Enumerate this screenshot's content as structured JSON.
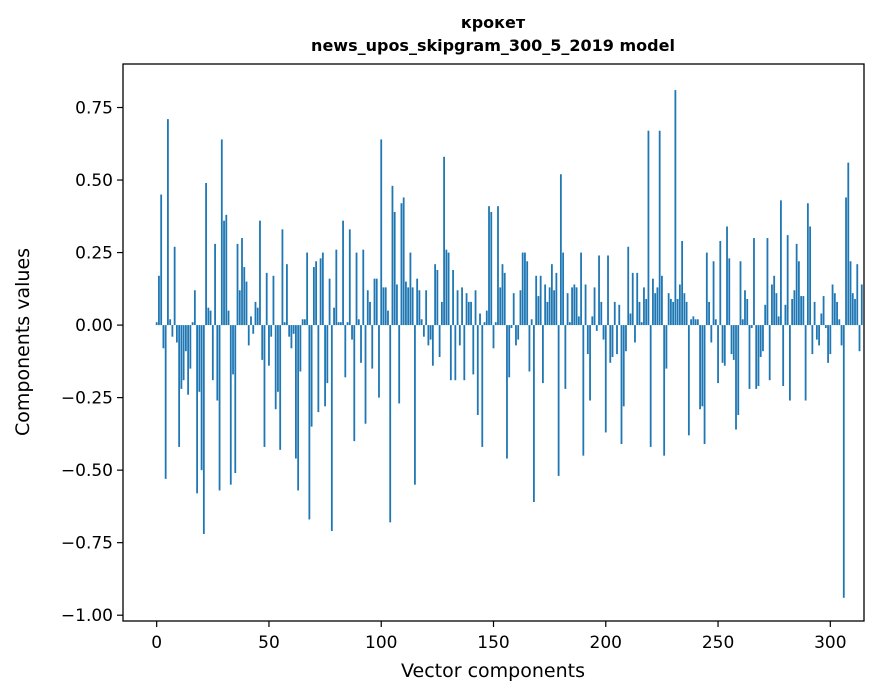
{
  "chart_data": {
    "type": "bar",
    "title": "крокет",
    "subtitle": "news_upos_skipgram_300_5_2019 model",
    "xlabel": "Vector components",
    "ylabel": "Components values",
    "xlim": [
      -15,
      315
    ],
    "ylim": [
      -1.02,
      0.9
    ],
    "x_ticks": [
      0,
      50,
      100,
      150,
      200,
      250,
      300
    ],
    "x_tick_labels": [
      "0",
      "50",
      "100",
      "150",
      "200",
      "250",
      "300"
    ],
    "y_ticks": [
      -1.0,
      -0.75,
      -0.5,
      -0.25,
      0.0,
      0.25,
      0.5,
      0.75
    ],
    "y_tick_labels": [
      "−1.00",
      "−0.75",
      "−0.50",
      "−0.25",
      "0.00",
      "0.25",
      "0.50",
      "0.75"
    ],
    "bar_color": "#1f77b4",
    "grid": false,
    "values": [
      0.01,
      0.17,
      0.45,
      -0.08,
      -0.53,
      0.71,
      0.02,
      -0.04,
      0.27,
      -0.06,
      -0.42,
      -0.22,
      -0.19,
      -0.09,
      -0.24,
      -0.15,
      0.01,
      0.12,
      -0.58,
      -0.23,
      -0.5,
      -0.72,
      0.49,
      0.06,
      0.05,
      -0.19,
      0.28,
      -0.26,
      -0.57,
      0.64,
      0.36,
      0.38,
      0.05,
      -0.55,
      -0.17,
      -0.51,
      0.28,
      0.12,
      0.3,
      0.2,
      0.15,
      -0.07,
      0.03,
      -0.03,
      0.08,
      0.06,
      0.36,
      -0.12,
      -0.42,
      0.18,
      -0.14,
      -0.04,
      0.17,
      -0.29,
      -0.23,
      -0.43,
      0.33,
      0.01,
      0.21,
      -0.04,
      -0.08,
      -0.03,
      -0.46,
      -0.57,
      -0.16,
      0.02,
      0.02,
      0.25,
      -0.67,
      -0.35,
      0.2,
      0.22,
      -0.3,
      0.23,
      0.25,
      -0.28,
      -0.2,
      0.16,
      -0.71,
      0.06,
      0.26,
      0.01,
      0.01,
      0.36,
      -0.18,
      0.01,
      0.33,
      -0.05,
      -0.4,
      0.25,
      0.02,
      -0.13,
      0.26,
      -0.34,
      0.12,
      0.08,
      -0.15,
      0.16,
      0.16,
      -0.25,
      0.64,
      0.13,
      0.13,
      0.05,
      -0.68,
      0.48,
      0.39,
      0.14,
      -0.27,
      0.42,
      0.44,
      0.15,
      0.13,
      0.25,
      0.13,
      -0.55,
      0.16,
      0.12,
      0.02,
      -0.04,
      0.12,
      -0.07,
      -0.05,
      -0.14,
      0.21,
      0.19,
      -0.11,
      0.08,
      0.58,
      0.26,
      0.25,
      -0.19,
      0.19,
      -0.19,
      0.12,
      -0.07,
      0.13,
      -0.19,
      0.11,
      0.08,
      0.08,
      -0.17,
      0.12,
      -0.31,
      0.04,
      -0.42,
      0.01,
      0.05,
      0.41,
      0.39,
      -0.08,
      0.01,
      0.41,
      0.13,
      0.21,
      0.18,
      -0.46,
      -0.18,
      -0.01,
      0.11,
      -0.07,
      -0.05,
      0.12,
      0.25,
      0.25,
      0.22,
      -0.16,
      0.02,
      -0.61,
      0.17,
      0.1,
      0.17,
      -0.2,
      0.14,
      0.08,
      0.13,
      0.21,
      0.12,
      0.18,
      -0.52,
      0.52,
      0.25,
      -0.22,
      0.11,
      0.01,
      0.13,
      0.14,
      0.13,
      0.03,
      0.25,
      -0.45,
      0.14,
      -0.1,
      -0.26,
      0.03,
      0.13,
      -0.02,
      0.24,
      0.08,
      -0.05,
      -0.37,
      0.24,
      -0.13,
      -0.11,
      0.08,
      -0.1,
      0.07,
      -0.41,
      -0.28,
      -0.09,
      0.27,
      0.04,
      0.18,
      -0.06,
      0.18,
      0.08,
      0.01,
      0.13,
      0.09,
      0.67,
      -0.42,
      0.16,
      0.11,
      0.13,
      0.67,
      0.17,
      -0.45,
      -0.15,
      0.11,
      0.09,
      0.08,
      0.81,
      0.09,
      0.14,
      0.29,
      0.11,
      0.08,
      -0.38,
      0.02,
      0.03,
      0.02,
      0.02,
      -0.29,
      -0.28,
      -0.41,
      0.25,
      0.08,
      -0.06,
      0.22,
      0.02,
      -0.2,
      0.29,
      -0.13,
      -0.14,
      0.34,
      0.23,
      -0.1,
      -0.12,
      -0.36,
      -0.31,
      0.22,
      0.02,
      0.12,
      0.09,
      -0.22,
      -0.01,
      0.3,
      -0.22,
      -0.21,
      -0.11,
      -0.09,
      0.07,
      0.3,
      -0.19,
      0.14,
      0.17,
      0.11,
      0.03,
      0.43,
      -0.21,
      0.07,
      0.31,
      -0.26,
      0.09,
      0.12,
      0.28,
      0.22,
      0.1,
      0.1,
      -0.26,
      0.42,
      0.34,
      -0.1,
      0.08,
      -0.05,
      -0.07,
      0.04,
      0.1,
      -0.01,
      -0.13,
      -0.1,
      0.14,
      0.11,
      0.08,
      0.02,
      -0.07,
      -0.94,
      0.44,
      0.56,
      0.22,
      0.11,
      0.09,
      0.21,
      -0.09,
      0.14
    ]
  }
}
